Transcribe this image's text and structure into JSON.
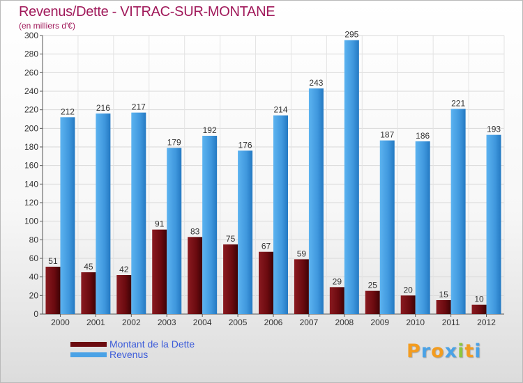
{
  "title": "Revenus/Dette - VITRAC-SUR-MONTANE",
  "subtitle": "(en milliers d'€)",
  "chart_data": {
    "type": "bar",
    "categories": [
      "2000",
      "2001",
      "2002",
      "2003",
      "2004",
      "2005",
      "2006",
      "2007",
      "2008",
      "2009",
      "2010",
      "2011",
      "2012"
    ],
    "series": [
      {
        "name": "Montant de la Dette",
        "color": "#7a1015",
        "values": [
          51,
          45,
          42,
          91,
          83,
          75,
          67,
          59,
          29,
          25,
          20,
          15,
          10
        ]
      },
      {
        "name": "Revenus",
        "color": "#4aa2e6",
        "values": [
          212,
          216,
          217,
          179,
          192,
          176,
          214,
          243,
          295,
          187,
          186,
          221,
          193
        ]
      }
    ],
    "ylim": [
      0,
      300
    ],
    "yticks": [
      0,
      20,
      40,
      60,
      80,
      100,
      120,
      140,
      160,
      180,
      200,
      220,
      240,
      260,
      280,
      300
    ],
    "grid": true,
    "legend_position": "bottom-left"
  },
  "legend": [
    {
      "label": "Montant de la Dette",
      "color": "#6b0b10"
    },
    {
      "label": "Revenus",
      "color": "#4aa2e6"
    }
  ],
  "brand": {
    "letters": [
      "P",
      "r",
      "o",
      "x",
      "i",
      "t",
      "i"
    ],
    "colors": [
      "#f39c1f",
      "#4aa2e6",
      "#f39c1f",
      "#4aa2e6",
      "#8cc63f",
      "#f39c1f",
      "#4aa2e6"
    ]
  }
}
